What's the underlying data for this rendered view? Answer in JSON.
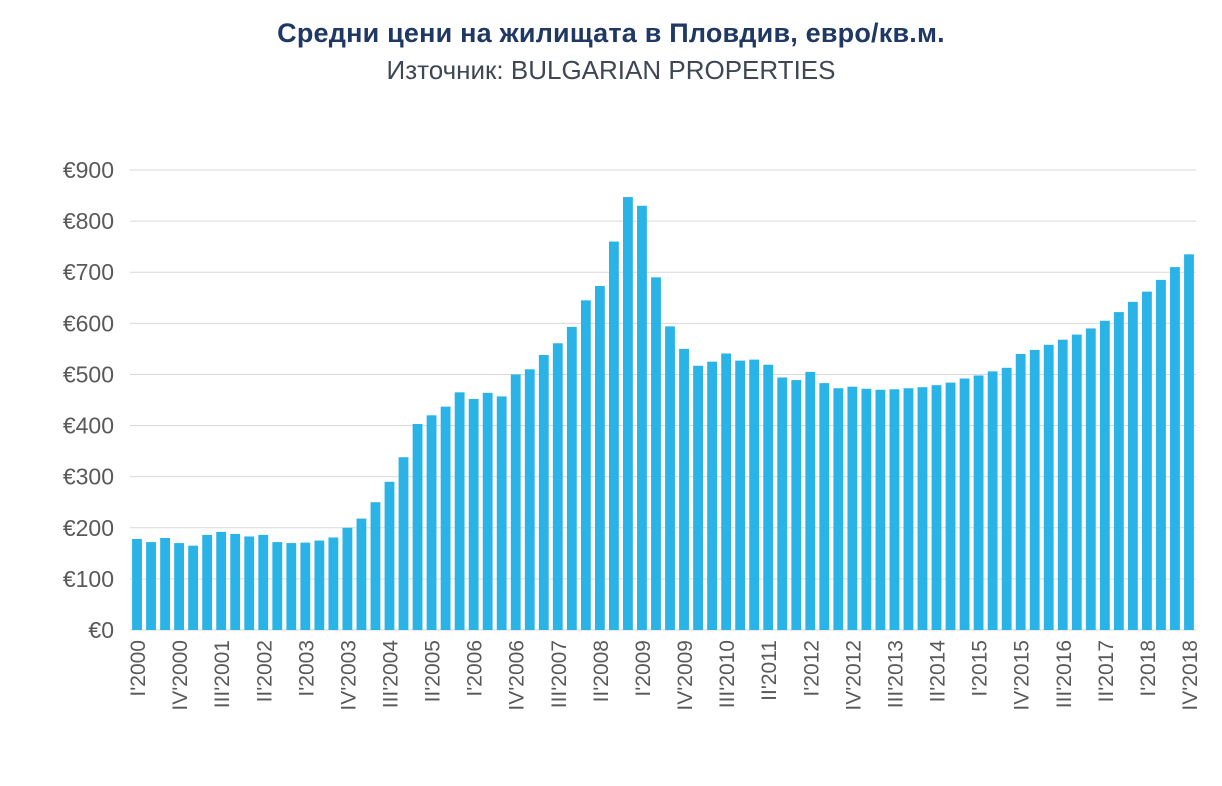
{
  "chart_data": {
    "type": "bar",
    "title": "Средни цени на жилищата в Пловдив, евро/кв.м.",
    "subtitle": "Източник: BULGARIAN PROPERTIES",
    "xlabel": "",
    "ylabel": "",
    "ylim": [
      0,
      900
    ],
    "ytick_step": 100,
    "ytick_prefix": "€",
    "grid": "horizontal",
    "legend": "none",
    "bar_color": "#29b3e6",
    "grid_color": "#d9d9d9",
    "axis_text_color": "#595959",
    "tick_stride": 3,
    "categories": [
      "I'2000",
      "II'2000",
      "III'2000",
      "IV'2000",
      "I'2001",
      "II'2001",
      "III'2001",
      "IV'2001",
      "I'2002",
      "II'2002",
      "III'2002",
      "IV'2002",
      "I'2003",
      "II'2003",
      "III'2003",
      "IV'2003",
      "I'2004",
      "II'2004",
      "III'2004",
      "IV'2004",
      "I'2005",
      "II'2005",
      "III'2005",
      "IV'2005",
      "I'2006",
      "II'2006",
      "III'2006",
      "IV'2006",
      "I'2007",
      "II'2007",
      "III'2007",
      "IV'2007",
      "I'2008",
      "II'2008",
      "III'2008",
      "IV'2008",
      "I'2009",
      "II'2009",
      "III'2009",
      "IV'2009",
      "I'2010",
      "II'2010",
      "III'2010",
      "IV'2010",
      "I'2011",
      "II'2011",
      "III'2011",
      "IV'2011",
      "I'2012",
      "II'2012",
      "III'2012",
      "IV'2012",
      "I'2013",
      "II'2013",
      "III'2013",
      "IV'2013",
      "I'2014",
      "II'2014",
      "III'2014",
      "IV'2014",
      "I'2015",
      "II'2015",
      "III'2015",
      "IV'2015",
      "I'2016",
      "II'2016",
      "III'2016",
      "IV'2016",
      "I'2017",
      "II'2017",
      "III'2017",
      "IV'2017",
      "I'2018",
      "II'2018",
      "III'2018",
      "IV'2018"
    ],
    "values": [
      178,
      172,
      180,
      170,
      165,
      186,
      192,
      188,
      183,
      186,
      172,
      170,
      171,
      175,
      181,
      200,
      218,
      250,
      290,
      338,
      403,
      420,
      437,
      465,
      452,
      464,
      457,
      500,
      510,
      538,
      561,
      593,
      645,
      673,
      760,
      847,
      830,
      690,
      594,
      550,
      517,
      525,
      541,
      527,
      529,
      519,
      494,
      489,
      505,
      483,
      473,
      476,
      472,
      470,
      471,
      473,
      475,
      479,
      484,
      492,
      498,
      506,
      513,
      540,
      548,
      558,
      568,
      578,
      590,
      605,
      622,
      642,
      662,
      685,
      710,
      735
    ]
  }
}
